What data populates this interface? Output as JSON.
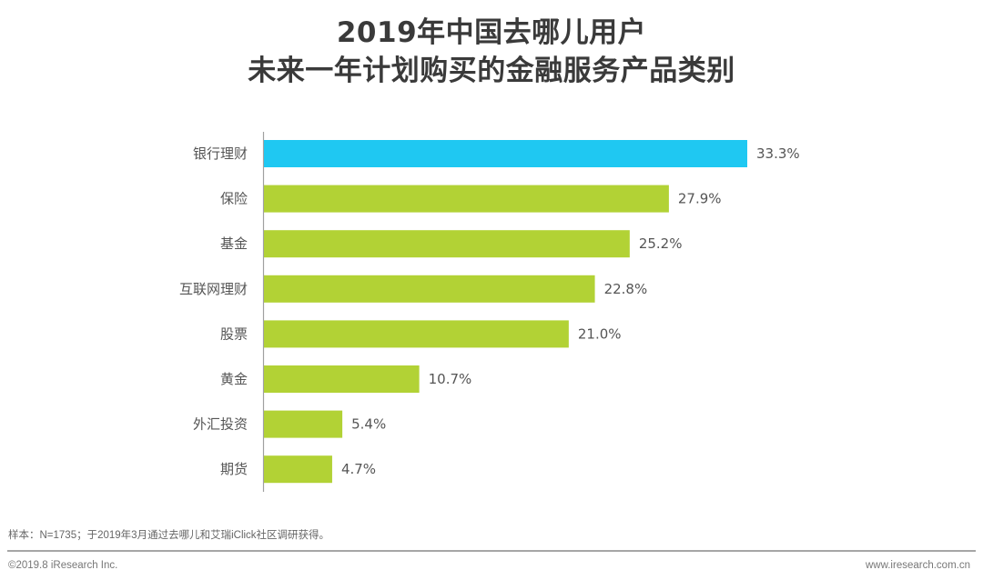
{
  "header": {
    "title_line1": "2019年中国去哪儿用户",
    "title_line2": "未来一年计划购买的金融服务产品类别"
  },
  "chart_data": {
    "type": "bar",
    "orientation": "horizontal",
    "title": "2019年中国去哪儿用户未来一年计划购买的金融服务产品类别",
    "xlabel": "",
    "ylabel": "",
    "categories": [
      "银行理财",
      "保险",
      "基金",
      "互联网理财",
      "股票",
      "黄金",
      "外汇投资",
      "期货"
    ],
    "values": [
      33.3,
      27.9,
      25.2,
      22.8,
      21.0,
      10.7,
      5.4,
      4.7
    ],
    "value_labels": [
      "33.3%",
      "27.9%",
      "25.2%",
      "22.8%",
      "21.0%",
      "10.7%",
      "5.4%",
      "4.7%"
    ],
    "unit": "%",
    "xlim": [
      0,
      33.3
    ],
    "grid": false,
    "legend": "none",
    "highlight_index": 0,
    "colors": {
      "highlight": "#1fc8f2",
      "default": "#b2d235",
      "axis": "#a0a0a0",
      "text": "#555555"
    }
  },
  "footer": {
    "note": "样本：N=1735；于2019年3月通过去哪儿和艾瑞iClick社区调研获得。",
    "copyright": "©2019.8 iResearch Inc.",
    "website": "www.iresearch.com.cn"
  }
}
